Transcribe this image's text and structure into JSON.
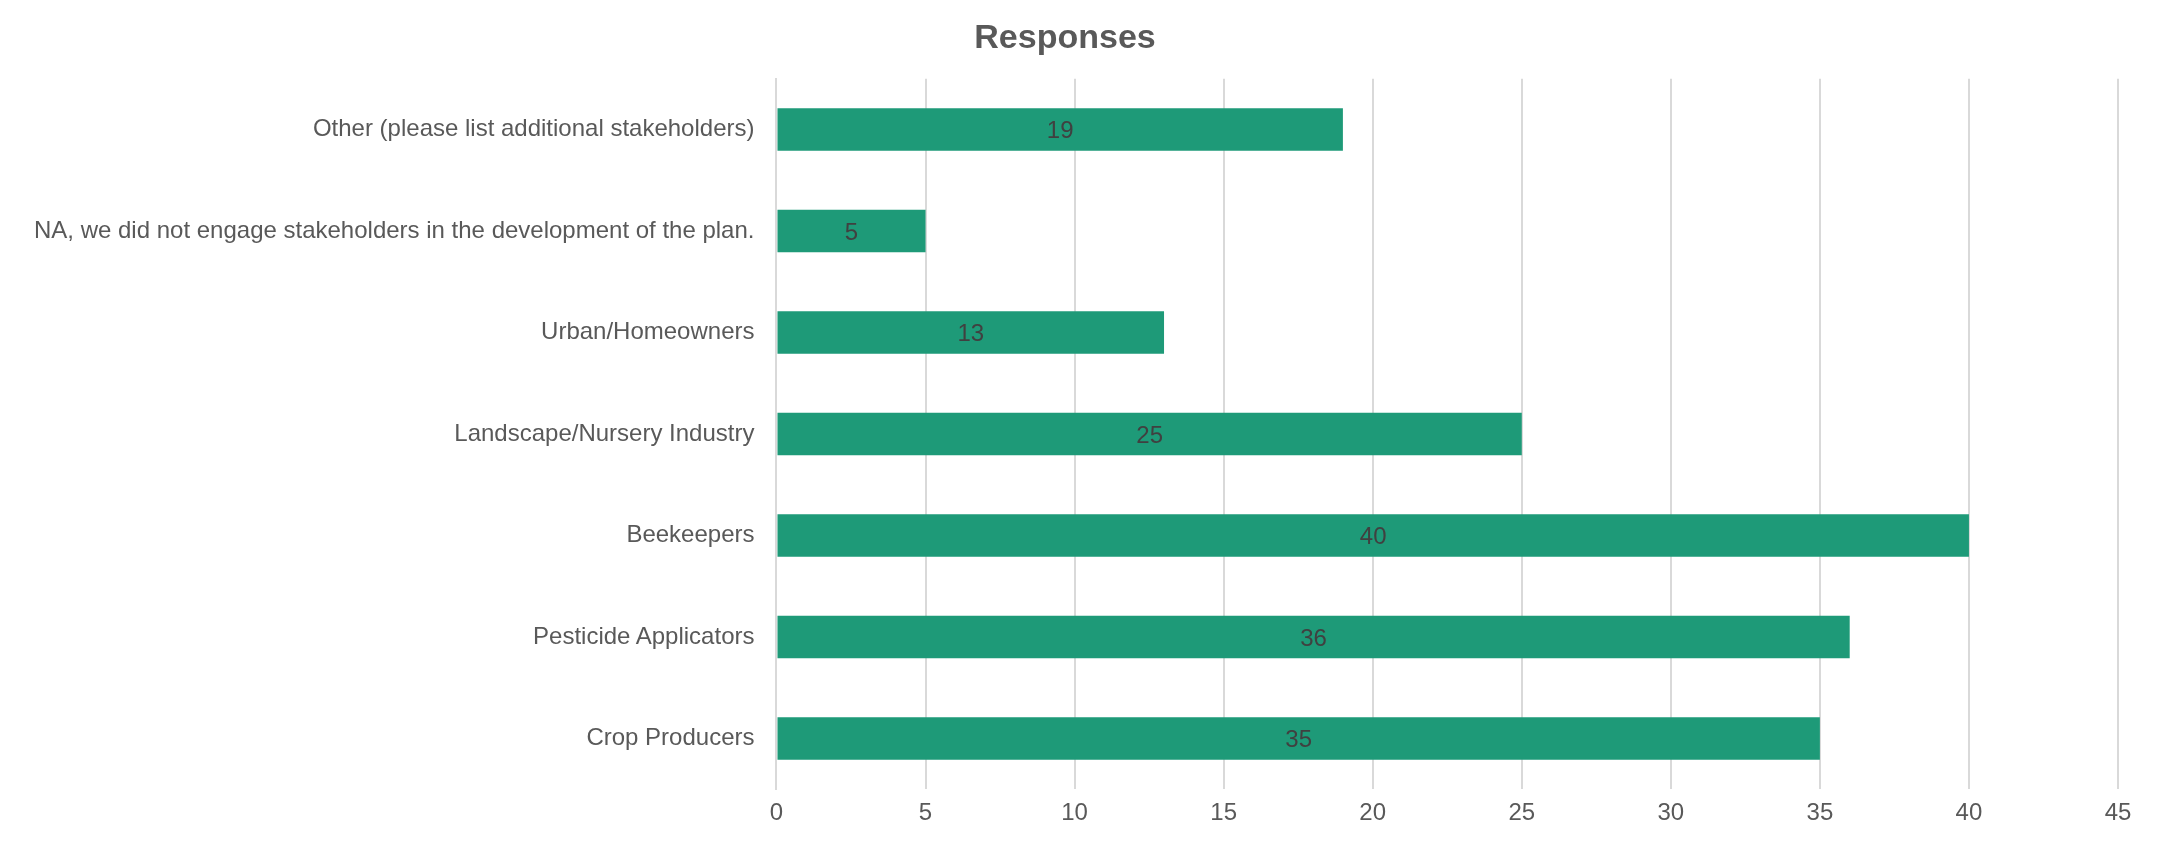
{
  "chart_data": {
    "type": "bar",
    "orientation": "horizontal",
    "title": "Responses",
    "categories": [
      "Other (please list additional stakeholders)",
      "NA, we did not engage stakeholders in the development of the plan.",
      "Urban/Homeowners",
      "Landscape/Nursery Industry",
      "Beekeepers",
      "Pesticide Applicators",
      "Crop Producers"
    ],
    "values": [
      19,
      5,
      13,
      25,
      40,
      36,
      35
    ],
    "color": "#1e9a78",
    "xlim": [
      0,
      45
    ],
    "xticks": [
      0,
      5,
      10,
      15,
      20,
      25,
      30,
      35,
      40,
      45
    ],
    "grid": "x",
    "data_labels": true,
    "legend": false
  }
}
